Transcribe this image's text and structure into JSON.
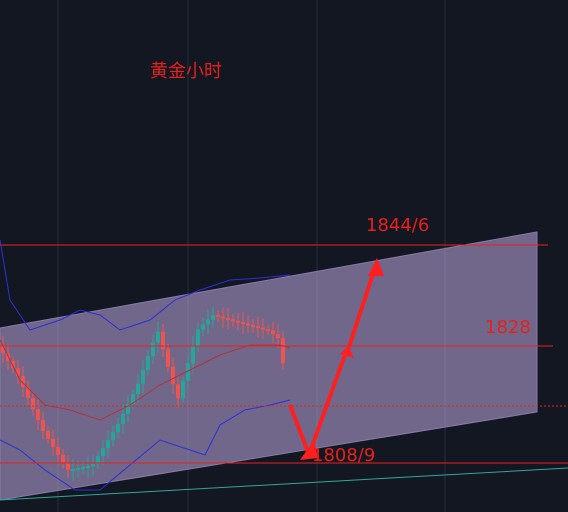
{
  "title": "黄金小时",
  "levels": [
    {
      "label": "1844/6"
    },
    {
      "label": "1828"
    },
    {
      "label": "1808/9"
    }
  ]
}
